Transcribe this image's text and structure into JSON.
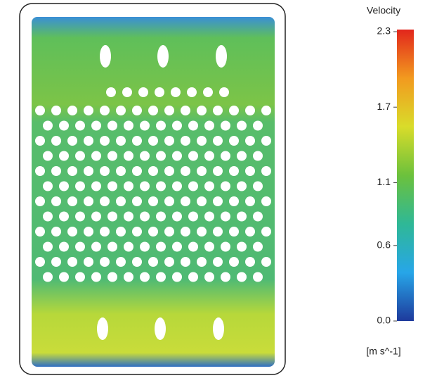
{
  "chart_data": {
    "type": "contour",
    "title": "Velocity",
    "unit_label": "[m s^-1]",
    "ylim": [
      0,
      2.3
    ],
    "yticks": [
      {
        "value": 0,
        "label": "0.0"
      },
      {
        "value": 0.6,
        "label": "0.6"
      },
      1.1,
      1.7,
      2.3
    ],
    "colors": [
      "#1e3a9c",
      "#27a6e8",
      "#2fb896",
      "#6cc13c",
      "#d9dc2a",
      "#f29a1f",
      "#e2261c"
    ]
  }
}
